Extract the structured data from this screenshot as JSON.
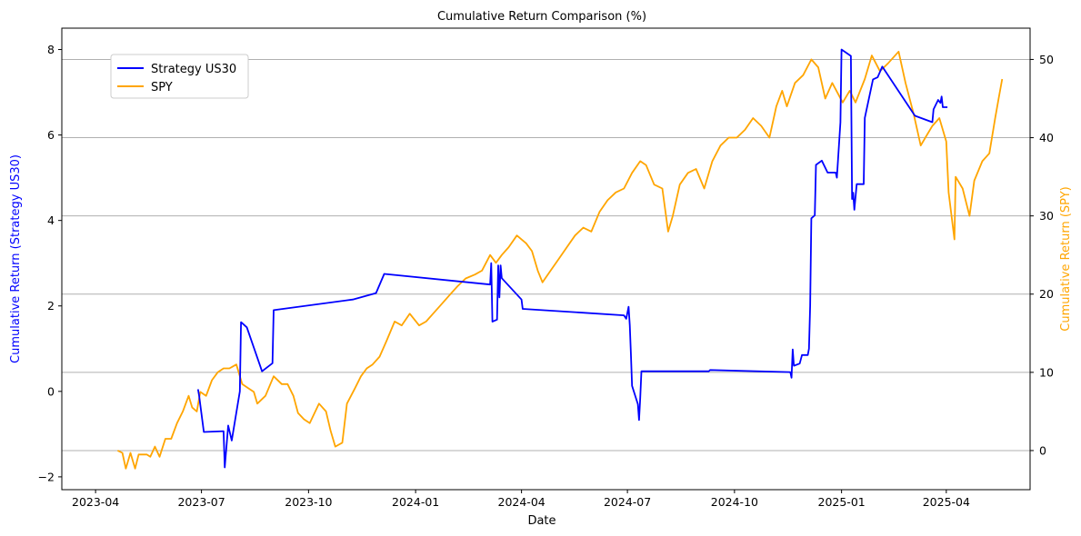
{
  "chart_data": {
    "type": "line",
    "title": "Cumulative Return Comparison (%)",
    "xlabel": "Date",
    "ylabel_left": "Cumulative Return (Strategy US30)",
    "ylabel_right": "Cumulative Return (SPY)",
    "xlim": [
      "2023-03-03",
      "2025-06-12"
    ],
    "ylim_left": [
      -2.3,
      8.5
    ],
    "ylim_right": [
      -5,
      54
    ],
    "left_ticks": [
      -2,
      0,
      2,
      4,
      6,
      8
    ],
    "right_ticks": [
      0,
      10,
      20,
      30,
      40,
      50
    ],
    "x_ticks": [
      "2023-04",
      "2023-07",
      "2023-10",
      "2024-01",
      "2024-04",
      "2024-07",
      "2024-10",
      "2025-01",
      "2025-04"
    ],
    "grid": "horizontal lines at right-axis ticks",
    "legend_placement": "upper-left",
    "colors": {
      "strategy": "#0000ff",
      "spy": "#ffa500",
      "axis": "#000000"
    },
    "series": [
      {
        "name": "Strategy US30",
        "axis": "left",
        "color": "#0000ff",
        "points": [
          [
            "2023-06-28",
            0.05
          ],
          [
            "2023-06-29",
            -0.1
          ],
          [
            "2023-07-03",
            -0.95
          ],
          [
            "2023-07-20",
            -0.93
          ],
          [
            "2023-07-21",
            -1.78
          ],
          [
            "2023-07-24",
            -0.8
          ],
          [
            "2023-07-27",
            -1.15
          ],
          [
            "2023-08-03",
            0.0
          ],
          [
            "2023-08-04",
            1.62
          ],
          [
            "2023-08-09",
            1.5
          ],
          [
            "2023-08-22",
            0.47
          ],
          [
            "2023-08-31",
            0.66
          ],
          [
            "2023-09-01",
            1.9
          ],
          [
            "2023-11-08",
            2.15
          ],
          [
            "2023-11-28",
            2.3
          ],
          [
            "2023-12-05",
            2.75
          ],
          [
            "2024-03-05",
            2.5
          ],
          [
            "2024-03-06",
            3.0
          ],
          [
            "2024-03-07",
            1.63
          ],
          [
            "2024-03-11",
            1.68
          ],
          [
            "2024-03-12",
            2.95
          ],
          [
            "2024-03-13",
            2.2
          ],
          [
            "2024-03-14",
            2.95
          ],
          [
            "2024-03-15",
            2.65
          ],
          [
            "2024-04-01",
            2.15
          ],
          [
            "2024-04-02",
            1.93
          ],
          [
            "2024-06-28",
            1.78
          ],
          [
            "2024-06-30",
            1.7
          ],
          [
            "2024-07-02",
            1.98
          ],
          [
            "2024-07-03",
            1.55
          ],
          [
            "2024-07-04",
            0.9
          ],
          [
            "2024-07-05",
            0.13
          ],
          [
            "2024-07-10",
            -0.3
          ],
          [
            "2024-07-11",
            -0.67
          ],
          [
            "2024-07-12",
            -0.15
          ],
          [
            "2024-07-13",
            0.47
          ],
          [
            "2024-09-09",
            0.47
          ],
          [
            "2024-09-10",
            0.5
          ],
          [
            "2024-11-18",
            0.45
          ],
          [
            "2024-11-19",
            0.32
          ],
          [
            "2024-11-20",
            0.98
          ],
          [
            "2024-11-21",
            0.6
          ],
          [
            "2024-11-26",
            0.65
          ],
          [
            "2024-11-28",
            0.85
          ],
          [
            "2024-12-03",
            0.85
          ],
          [
            "2024-12-04",
            1.0
          ],
          [
            "2024-12-05",
            2.0
          ],
          [
            "2024-12-06",
            4.05
          ],
          [
            "2024-12-09",
            4.12
          ],
          [
            "2024-12-10",
            5.3
          ],
          [
            "2024-12-15",
            5.4
          ],
          [
            "2024-12-20",
            5.12
          ],
          [
            "2024-12-27",
            5.12
          ],
          [
            "2024-12-28",
            5.0
          ],
          [
            "2024-12-31",
            6.3
          ],
          [
            "2025-01-01",
            8.0
          ],
          [
            "2025-01-09",
            7.85
          ],
          [
            "2025-01-10",
            4.5
          ],
          [
            "2025-01-11",
            4.65
          ],
          [
            "2025-01-12",
            4.25
          ],
          [
            "2025-01-14",
            4.85
          ],
          [
            "2025-01-20",
            4.85
          ],
          [
            "2025-01-21",
            6.4
          ],
          [
            "2025-01-28",
            7.3
          ],
          [
            "2025-02-01",
            7.35
          ],
          [
            "2025-02-05",
            7.6
          ],
          [
            "2025-03-05",
            6.45
          ],
          [
            "2025-03-20",
            6.3
          ],
          [
            "2025-03-21",
            6.6
          ],
          [
            "2025-03-25",
            6.82
          ],
          [
            "2025-03-27",
            6.75
          ],
          [
            "2025-03-28",
            6.9
          ],
          [
            "2025-03-29",
            6.65
          ],
          [
            "2025-04-02",
            6.65
          ]
        ]
      },
      {
        "name": "SPY",
        "axis": "right",
        "color": "#ffa500",
        "points": [
          [
            "2023-04-20",
            0
          ],
          [
            "2023-04-24",
            -0.3
          ],
          [
            "2023-04-27",
            -2.3
          ],
          [
            "2023-05-01",
            -0.3
          ],
          [
            "2023-05-05",
            -2.3
          ],
          [
            "2023-05-08",
            -0.5
          ],
          [
            "2023-05-15",
            -0.5
          ],
          [
            "2023-05-18",
            -0.8
          ],
          [
            "2023-05-22",
            0.5
          ],
          [
            "2023-05-26",
            -0.8
          ],
          [
            "2023-05-31",
            1.5
          ],
          [
            "2023-06-05",
            1.5
          ],
          [
            "2023-06-10",
            3.5
          ],
          [
            "2023-06-15",
            5.0
          ],
          [
            "2023-06-20",
            7.0
          ],
          [
            "2023-06-23",
            5.5
          ],
          [
            "2023-06-27",
            5.0
          ],
          [
            "2023-06-30",
            7.5
          ],
          [
            "2023-07-05",
            7.0
          ],
          [
            "2023-07-10",
            9.0
          ],
          [
            "2023-07-15",
            10.0
          ],
          [
            "2023-07-20",
            10.5
          ],
          [
            "2023-07-25",
            10.5
          ],
          [
            "2023-07-31",
            11.0
          ],
          [
            "2023-08-05",
            8.5
          ],
          [
            "2023-08-10",
            8.0
          ],
          [
            "2023-08-15",
            7.5
          ],
          [
            "2023-08-18",
            6.0
          ],
          [
            "2023-08-25",
            7.0
          ],
          [
            "2023-09-01",
            9.5
          ],
          [
            "2023-09-08",
            8.5
          ],
          [
            "2023-09-13",
            8.5
          ],
          [
            "2023-09-18",
            7.0
          ],
          [
            "2023-09-22",
            4.8
          ],
          [
            "2023-09-27",
            4.0
          ],
          [
            "2023-10-02",
            3.5
          ],
          [
            "2023-10-10",
            6.0
          ],
          [
            "2023-10-16",
            5.0
          ],
          [
            "2023-10-20",
            2.5
          ],
          [
            "2023-10-24",
            0.5
          ],
          [
            "2023-10-30",
            1.0
          ],
          [
            "2023-11-03",
            6.0
          ],
          [
            "2023-11-10",
            8.0
          ],
          [
            "2023-11-15",
            9.5
          ],
          [
            "2023-11-20",
            10.5
          ],
          [
            "2023-11-25",
            11.0
          ],
          [
            "2023-12-01",
            12.0
          ],
          [
            "2023-12-07",
            14.0
          ],
          [
            "2023-12-14",
            16.5
          ],
          [
            "2023-12-20",
            16.0
          ],
          [
            "2023-12-27",
            17.5
          ],
          [
            "2024-01-04",
            16.0
          ],
          [
            "2024-01-10",
            16.5
          ],
          [
            "2024-01-16",
            17.5
          ],
          [
            "2024-01-22",
            18.5
          ],
          [
            "2024-01-31",
            20.0
          ],
          [
            "2024-02-06",
            21.0
          ],
          [
            "2024-02-13",
            22.0
          ],
          [
            "2024-02-21",
            22.5
          ],
          [
            "2024-02-27",
            23.0
          ],
          [
            "2024-03-05",
            25.0
          ],
          [
            "2024-03-10",
            24.0
          ],
          [
            "2024-03-15",
            25.0
          ],
          [
            "2024-03-21",
            26.0
          ],
          [
            "2024-03-28",
            27.5
          ],
          [
            "2024-04-05",
            26.5
          ],
          [
            "2024-04-10",
            25.5
          ],
          [
            "2024-04-15",
            23.0
          ],
          [
            "2024-04-19",
            21.5
          ],
          [
            "2024-04-26",
            23.0
          ],
          [
            "2024-05-03",
            24.5
          ],
          [
            "2024-05-10",
            26.0
          ],
          [
            "2024-05-17",
            27.5
          ],
          [
            "2024-05-24",
            28.5
          ],
          [
            "2024-05-31",
            28.0
          ],
          [
            "2024-06-07",
            30.5
          ],
          [
            "2024-06-14",
            32.0
          ],
          [
            "2024-06-21",
            33.0
          ],
          [
            "2024-06-28",
            33.5
          ],
          [
            "2024-07-05",
            35.5
          ],
          [
            "2024-07-12",
            37.0
          ],
          [
            "2024-07-17",
            36.5
          ],
          [
            "2024-07-24",
            34.0
          ],
          [
            "2024-07-31",
            33.5
          ],
          [
            "2024-08-05",
            28.0
          ],
          [
            "2024-08-09",
            30.0
          ],
          [
            "2024-08-15",
            34.0
          ],
          [
            "2024-08-22",
            35.5
          ],
          [
            "2024-08-29",
            36.0
          ],
          [
            "2024-09-05",
            33.5
          ],
          [
            "2024-09-12",
            37.0
          ],
          [
            "2024-09-19",
            39.0
          ],
          [
            "2024-09-26",
            40.0
          ],
          [
            "2024-10-03",
            40.0
          ],
          [
            "2024-10-10",
            41.0
          ],
          [
            "2024-10-17",
            42.5
          ],
          [
            "2024-10-24",
            41.5
          ],
          [
            "2024-10-31",
            40.0
          ],
          [
            "2024-11-06",
            44.0
          ],
          [
            "2024-11-11",
            46.0
          ],
          [
            "2024-11-15",
            44.0
          ],
          [
            "2024-11-22",
            47.0
          ],
          [
            "2024-11-29",
            48.0
          ],
          [
            "2024-12-06",
            50.0
          ],
          [
            "2024-12-12",
            49.0
          ],
          [
            "2024-12-18",
            45.0
          ],
          [
            "2024-12-24",
            47.0
          ],
          [
            "2025-01-02",
            44.5
          ],
          [
            "2025-01-08",
            46.0
          ],
          [
            "2025-01-13",
            44.5
          ],
          [
            "2025-01-21",
            47.5
          ],
          [
            "2025-01-27",
            50.5
          ],
          [
            "2025-02-03",
            48.5
          ],
          [
            "2025-02-10",
            49.5
          ],
          [
            "2025-02-19",
            51.0
          ],
          [
            "2025-02-25",
            47.0
          ],
          [
            "2025-03-04",
            43.0
          ],
          [
            "2025-03-10",
            39.0
          ],
          [
            "2025-03-14",
            40.0
          ],
          [
            "2025-03-20",
            41.5
          ],
          [
            "2025-03-26",
            42.5
          ],
          [
            "2025-04-01",
            39.5
          ],
          [
            "2025-04-03",
            33.0
          ],
          [
            "2025-04-08",
            27.0
          ],
          [
            "2025-04-09",
            35.0
          ],
          [
            "2025-04-15",
            33.5
          ],
          [
            "2025-04-21",
            30.0
          ],
          [
            "2025-04-25",
            34.5
          ],
          [
            "2025-05-02",
            37.0
          ],
          [
            "2025-05-08",
            38.0
          ],
          [
            "2025-05-13",
            42.5
          ],
          [
            "2025-05-16",
            45.0
          ],
          [
            "2025-05-19",
            47.5
          ]
        ]
      }
    ]
  }
}
